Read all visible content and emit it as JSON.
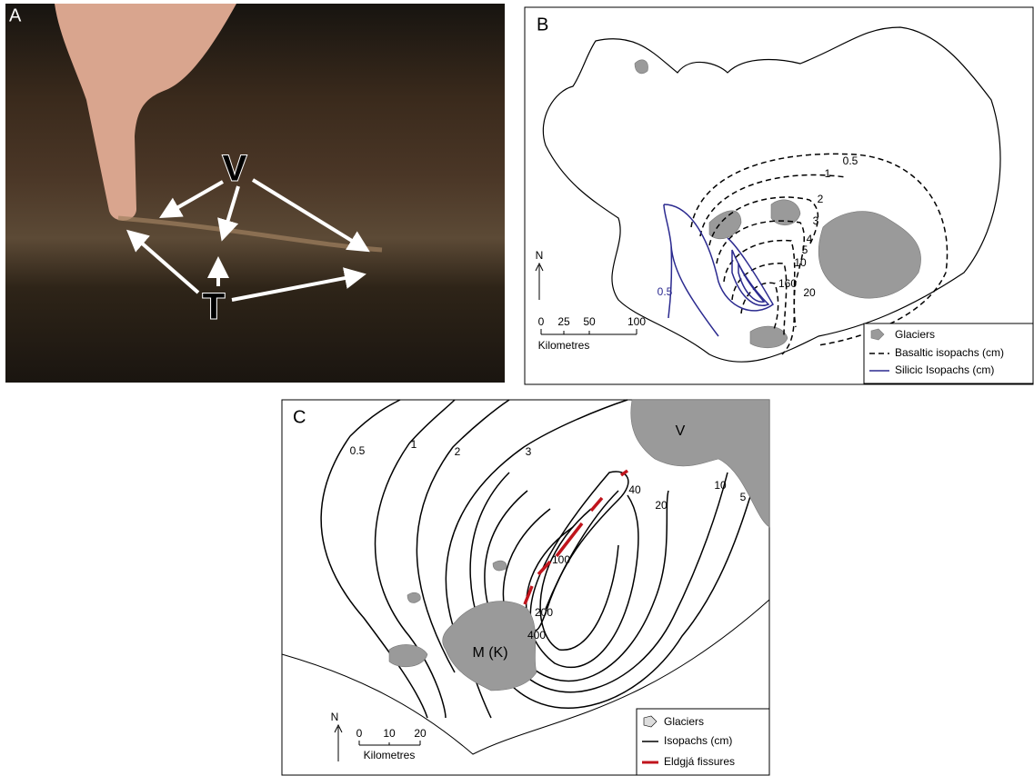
{
  "panels": [
    {
      "label": "A",
      "annotations": [
        "V",
        "T"
      ]
    },
    {
      "label": "B",
      "basaltic_labels": [
        0.5,
        1,
        2,
        3,
        4,
        5,
        10,
        160,
        20
      ],
      "silicic_labels": [
        0.5
      ],
      "north": "N",
      "scale_ticks": [
        0,
        25,
        50,
        100
      ],
      "scale_unit": "Kilometres",
      "legend": [
        "Glaciers",
        "Basaltic isopachs (cm)",
        "Silicic Isopachs (cm)"
      ]
    },
    {
      "label": "C",
      "isopach_labels": [
        0.5,
        1,
        2,
        3,
        40,
        20,
        10,
        5,
        100,
        200,
        400
      ],
      "glacier_labels": [
        "V",
        "M (K)"
      ],
      "north": "N",
      "scale_ticks": [
        0,
        10,
        20
      ],
      "scale_unit": "Kilometres",
      "legend": [
        "Glaciers",
        "Isopachs (cm)",
        "Eldgjá fissures"
      ]
    }
  ]
}
